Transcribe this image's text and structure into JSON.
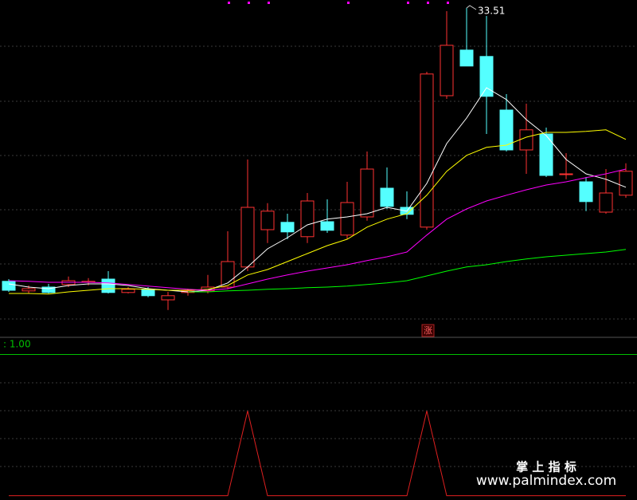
{
  "chart_data": [
    {
      "type": "candlestick",
      "open": [
        24.94,
        24.64,
        24.76,
        24.84,
        24.91,
        25.01,
        24.59,
        24.69,
        24.36,
        24.59,
        24.64,
        24.76,
        25.39,
        26.56,
        26.79,
        26.34,
        26.81,
        26.39,
        26.96,
        27.86,
        27.26,
        26.64,
        30.76,
        32.19,
        31.99,
        30.31,
        29.06,
        29.56,
        28.29,
        28.06,
        27.11,
        27.64
      ],
      "close": [
        24.66,
        24.71,
        24.59,
        24.96,
        24.94,
        24.59,
        24.69,
        24.49,
        24.49,
        24.64,
        24.76,
        25.56,
        27.26,
        27.14,
        26.49,
        27.46,
        26.54,
        27.41,
        28.46,
        27.29,
        27.04,
        31.44,
        32.34,
        31.69,
        30.74,
        29.06,
        29.69,
        28.26,
        28.31,
        27.44,
        27.71,
        28.39
      ],
      "high": [
        25.01,
        24.81,
        24.86,
        25.09,
        25.04,
        25.26,
        24.76,
        24.76,
        24.61,
        24.71,
        25.14,
        26.51,
        28.76,
        27.39,
        27.06,
        27.71,
        27.51,
        28.06,
        29.01,
        28.51,
        27.76,
        31.51,
        33.41,
        33.51,
        33.26,
        30.81,
        30.51,
        29.76,
        28.96,
        28.21,
        28.46,
        28.64
      ],
      "low": [
        24.61,
        24.56,
        24.56,
        24.76,
        24.81,
        24.56,
        24.56,
        24.44,
        24.04,
        24.49,
        24.56,
        24.69,
        25.26,
        26.14,
        26.26,
        26.14,
        26.46,
        26.26,
        26.84,
        27.21,
        26.89,
        26.56,
        30.66,
        31.69,
        29.56,
        29.01,
        28.31,
        28.21,
        28.14,
        27.14,
        27.06,
        27.56
      ],
      "up_color": "#ff3232",
      "down_color": "#54ffff",
      "series": [
        {
          "color": "#ffffff",
          "values": [
            24.86,
            24.76,
            24.71,
            24.81,
            24.86,
            24.86,
            24.81,
            24.71,
            24.66,
            24.61,
            24.66,
            24.89,
            25.39,
            25.96,
            26.31,
            26.71,
            26.89,
            26.96,
            27.06,
            27.26,
            27.14,
            28.01,
            29.26,
            30.06,
            31.01,
            30.64,
            30.01,
            29.51,
            28.76,
            28.31,
            28.14,
            27.89
          ]
        },
        {
          "color": "#ffff00",
          "values": [
            24.56,
            24.56,
            24.54,
            24.61,
            24.66,
            24.71,
            24.71,
            24.69,
            24.66,
            24.66,
            24.69,
            24.81,
            25.14,
            25.31,
            25.56,
            25.81,
            26.06,
            26.26,
            26.64,
            26.89,
            27.06,
            27.64,
            28.39,
            28.89,
            29.14,
            29.21,
            29.46,
            29.61,
            29.61,
            29.64,
            29.69,
            29.39
          ]
        },
        {
          "color": "#ff00ff",
          "values": [
            24.96,
            24.94,
            24.91,
            24.91,
            24.91,
            24.89,
            24.84,
            24.79,
            24.74,
            24.69,
            24.66,
            24.71,
            24.86,
            25.01,
            25.14,
            25.26,
            25.36,
            25.46,
            25.59,
            25.71,
            25.86,
            26.39,
            26.89,
            27.21,
            27.46,
            27.64,
            27.81,
            27.96,
            28.06,
            28.19,
            28.31,
            28.46
          ]
        },
        {
          "color": "#00ff00",
          "values": [
            null,
            null,
            null,
            null,
            null,
            null,
            null,
            null,
            null,
            24.61,
            24.61,
            24.64,
            24.66,
            24.69,
            24.71,
            24.74,
            24.76,
            24.79,
            24.84,
            24.89,
            24.96,
            25.11,
            25.26,
            25.39,
            25.46,
            25.56,
            25.64,
            25.71,
            25.76,
            25.81,
            25.86,
            25.94
          ]
        }
      ],
      "signal": "涨",
      "ylim": [
        23.76,
        33.76
      ]
    },
    {
      "type": "line",
      "series": [
        {
          "color": "#e02020",
          "values": [
            0,
            0,
            0,
            0,
            0,
            0,
            0,
            0,
            0,
            0,
            0,
            0,
            0.6,
            0,
            0,
            0,
            0,
            0,
            0,
            0,
            0,
            0.6,
            0,
            0,
            0,
            0,
            0,
            0,
            0,
            0,
            0,
            0
          ]
        }
      ],
      "reference": {
        "value": 1,
        "label": ": 1.00",
        "color": "#00c000"
      },
      "ylim": [
        -0.03,
        1.11
      ]
    }
  ],
  "watermark": {
    "title": "掌 上 指 标",
    "url": "www.palmindex.com"
  }
}
